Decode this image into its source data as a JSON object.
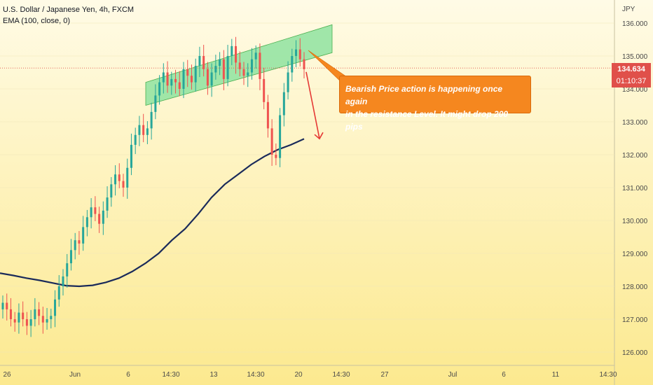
{
  "legend": {
    "symbol_line": "U.S. Dollar / Japanese Yen, 4h, FXCM",
    "ema_line": "EMA (100, close, 0)"
  },
  "price_axis": {
    "currency": "JPY",
    "current_price": "134.634",
    "countdown": "01:10:37"
  },
  "annotation": {
    "line1": "Bearish Price action is happening once again",
    "line2": "in the resistance Level. It might drop 200 pips"
  },
  "colors": {
    "up": "#26a69a",
    "down": "#ef5350",
    "ema": "#1a2a5a",
    "zone_fill": "#8fe3a0",
    "callout": "#f5871f",
    "arrow": "#e53935",
    "price_line": "#e0504a"
  },
  "chart_data": {
    "type": "candlestick",
    "title": "U.S. Dollar / Japanese Yen, 4h, FXCM",
    "xlabel": "",
    "ylabel": "JPY",
    "ylim": [
      125.5,
      136.2
    ],
    "yticks": [
      "136.000",
      "135.000",
      "134.000",
      "133.000",
      "132.000",
      "131.000",
      "130.000",
      "129.000",
      "128.000",
      "127.000",
      "126.000"
    ],
    "xticks": [
      "26",
      "Jun",
      "6",
      "14:30",
      "13",
      "14:30",
      "20",
      "14:30",
      "27",
      "Jul",
      "6",
      "11",
      "14:30"
    ],
    "current_price": 134.634,
    "candle_closes": [
      127.5,
      127.3,
      127.0,
      126.9,
      127.2,
      127.0,
      126.8,
      127.0,
      127.3,
      127.1,
      126.9,
      127.0,
      127.1,
      127.6,
      128.0,
      128.3,
      128.7,
      129.1,
      129.4,
      129.3,
      129.8,
      130.1,
      130.4,
      130.2,
      129.9,
      130.3,
      130.7,
      131.1,
      131.4,
      131.2,
      131.0,
      131.6,
      132.3,
      132.6,
      132.9,
      132.6,
      132.8,
      133.3,
      133.8,
      134.2,
      134.5,
      134.1,
      134.3,
      134.2,
      134.0,
      134.6,
      134.4,
      134.2,
      134.7,
      135.0,
      134.6,
      134.1,
      134.5,
      134.7,
      134.9,
      134.3,
      135.0,
      135.3,
      134.8,
      134.6,
      134.4,
      134.5,
      134.9,
      135.1,
      134.3,
      133.6,
      132.8,
      132.0,
      131.9,
      133.2,
      133.9,
      134.5,
      135.0,
      135.2,
      134.9,
      134.6
    ],
    "ema": {
      "name": "EMA (100, close, 0)",
      "values": [
        128.4,
        128.33,
        128.25,
        128.18,
        128.1,
        128.02,
        128.0,
        128.03,
        128.12,
        128.25,
        128.45,
        128.7,
        129.0,
        129.4,
        129.75,
        130.2,
        130.7,
        131.1,
        131.4,
        131.7,
        131.95,
        132.15,
        132.3,
        132.48
      ]
    },
    "resistance_zone": {
      "upper_start": 134.2,
      "upper_end": 135.95,
      "lower_start": 133.5,
      "lower_end": 135.1
    },
    "projection": {
      "from": 134.6,
      "to": 132.4
    }
  }
}
